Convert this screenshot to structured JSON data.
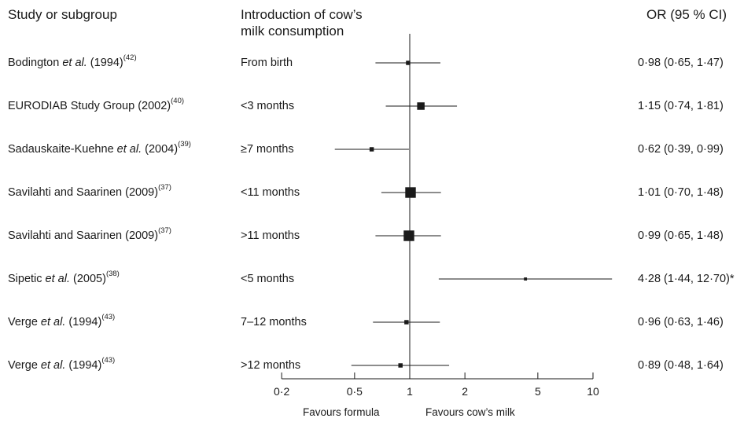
{
  "header": {
    "study": "Study or subgroup",
    "intro_line1": "Introduction of cow’s",
    "intro_line2": "milk consumption",
    "or": "OR (95 % CI)"
  },
  "footer": {
    "left": "Favours formula",
    "right": "Favours cow’s milk"
  },
  "chart_data": {
    "type": "forest",
    "x_scale": "log",
    "reference_line": 1,
    "xticks": [
      0.2,
      0.5,
      1,
      2,
      5,
      10
    ],
    "xtick_labels": [
      "0·2",
      "0·5",
      "1",
      "2",
      "5",
      "10"
    ],
    "rows": [
      {
        "author": "Bodington",
        "etal": " et al.",
        "year": " (1994)",
        "ref": "(42)",
        "intro": "From birth",
        "or": 0.98,
        "lo": 0.65,
        "hi": 1.47,
        "ci_text": "0·98 (0·65, 1·47)",
        "weight": 1
      },
      {
        "author": "EURODIAB Study Group",
        "etal": "",
        "year": " (2002)",
        "ref": "(40)",
        "intro": "<3 months",
        "or": 1.15,
        "lo": 0.74,
        "hi": 1.81,
        "ci_text": "1·15 (0·74, 1·81)",
        "weight": 3
      },
      {
        "author": "Sadauskaite-Kuehne",
        "etal": " et al.",
        "year": " (2004)",
        "ref": "(39)",
        "intro": "≥7 months",
        "or": 0.62,
        "lo": 0.39,
        "hi": 0.99,
        "ci_text": "0·62 (0·39, 0·99)",
        "weight": 1
      },
      {
        "author": "Savilahti and Saarinen",
        "etal": "",
        "year": " (2009)",
        "ref": "(37)",
        "intro": "<11 months",
        "or": 1.01,
        "lo": 0.7,
        "hi": 1.48,
        "ci_text": "1·01 (0·70, 1·48)",
        "weight": 6
      },
      {
        "author": "Savilahti and Saarinen",
        "etal": "",
        "year": " (2009)",
        "ref": "(37)",
        "intro": ">11 months",
        "or": 0.99,
        "lo": 0.65,
        "hi": 1.48,
        "ci_text": "0·99 (0·65, 1·48)",
        "weight": 6
      },
      {
        "author": "Sipetic",
        "etal": " et al.",
        "year": " (2005)",
        "ref": "(38)",
        "intro": "<5 months",
        "or": 4.28,
        "lo": 1.44,
        "hi": 12.7,
        "ci_text": "4·28 (1·44, 12·70)*",
        "weight": 0.5
      },
      {
        "author": "Verge",
        "etal": " et al.",
        "year": " (1994)",
        "ref": "(43)",
        "intro": "7–12 months",
        "or": 0.96,
        "lo": 0.63,
        "hi": 1.46,
        "ci_text": "0·96 (0·63, 1·46)",
        "weight": 1
      },
      {
        "author": "Verge",
        "etal": " et al.",
        "year": " (1994)",
        "ref": "(43)",
        "intro": ">12 months",
        "or": 0.89,
        "lo": 0.48,
        "hi": 1.64,
        "ci_text": "0·89 (0·48, 1·64)",
        "weight": 1
      }
    ]
  }
}
